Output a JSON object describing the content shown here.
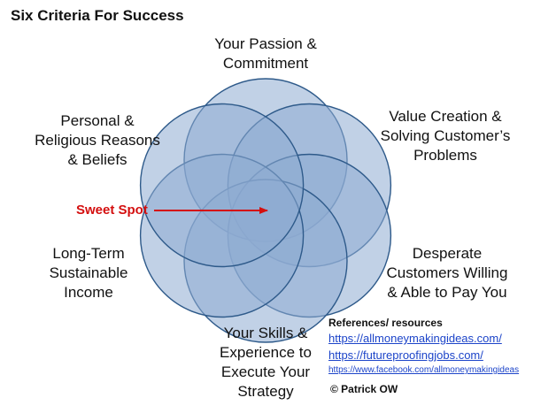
{
  "title": "Six Criteria For Success",
  "colors": {
    "circle_fill": "#8eabd2",
    "circle_stroke": "#2e5a8a",
    "sweet_spot": "#d40f0f",
    "link": "#1c44c9"
  },
  "criteria": {
    "top": [
      "Your Passion &",
      "Commitment"
    ],
    "top_right": [
      "Value Creation &",
      "Solving Customer’s",
      "Problems"
    ],
    "bottom_right": [
      "Desperate",
      "Customers Willing",
      "& Able to Pay You"
    ],
    "bottom": [
      "Your Skills &",
      "Experience to",
      "Execute Your",
      "Strategy"
    ],
    "bottom_left": [
      "Long-Term",
      "Sustainable",
      "Income"
    ],
    "top_left": [
      "Personal &",
      "Religious Reasons",
      "& Beliefs"
    ]
  },
  "sweet_spot": "Sweet Spot",
  "references": {
    "heading": "References/ resources",
    "links": [
      "https://allmoneymakingideas.com/",
      "https://futureproofingjobs.com/",
      "https://www.facebook.com/allmoneymakingideas"
    ]
  },
  "copyright": "© Patrick OW"
}
